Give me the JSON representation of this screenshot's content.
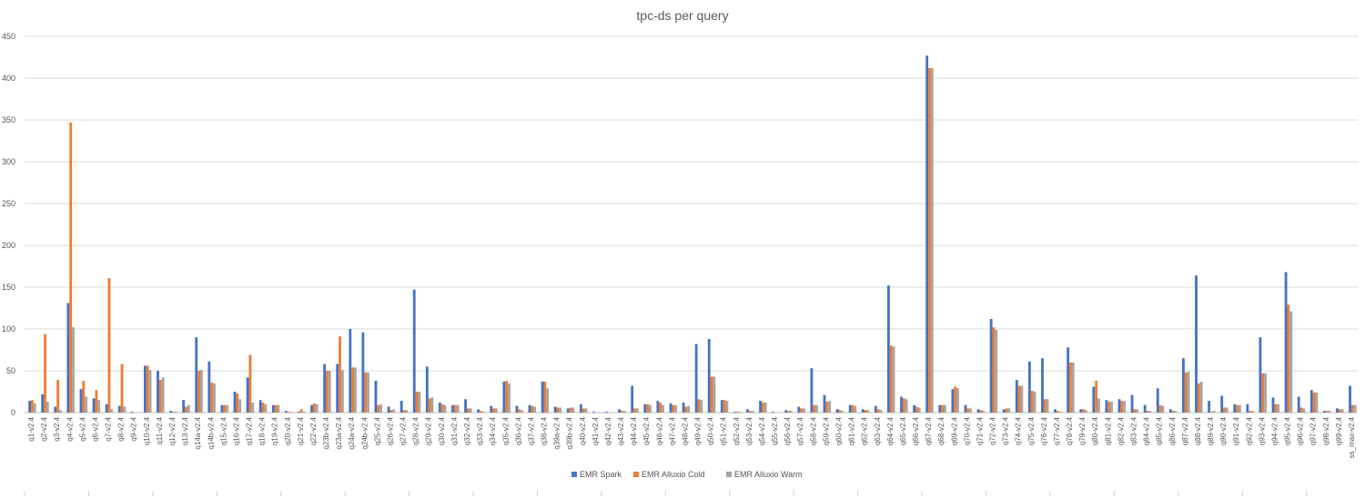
{
  "chart_data": {
    "type": "bar",
    "title": "tpc-ds per query",
    "xlabel": "",
    "ylabel": "",
    "ylim": [
      0,
      450
    ],
    "yticks": [
      0,
      50,
      100,
      150,
      200,
      250,
      300,
      350,
      400,
      450
    ],
    "grid": true,
    "legend_position": "bottom",
    "categories": [
      "q1-v2.4",
      "q2-v2.4",
      "q3-v2.4",
      "q4-v2.4",
      "q5-v2.4",
      "q6-v2.4",
      "q7-v2.4",
      "q8-v2.4",
      "q9-v2.4",
      "q10-v2.4",
      "q11-v2.4",
      "q12-v2.4",
      "q13-v2.4",
      "q14a-v2.4",
      "q14b-v2.4",
      "q15-v2.4",
      "q16-v2.4",
      "q17-v2.4",
      "q18-v2.4",
      "q19-v2.4",
      "q20-v2.4",
      "q21-v2.4",
      "q22-v2.4",
      "q23b-v2.4",
      "q23a-v2.4",
      "q24a-v2.4",
      "q24b-v2.4",
      "q25-v2.4",
      "q26-v2.4",
      "q27-v2.4",
      "q28-v2.4",
      "q29-v2.4",
      "q30-v2.4",
      "q31-v2.4",
      "q32-v2.4",
      "q33-v2.4",
      "q34-v2.4",
      "q35-v2.4",
      "q36-v2.4",
      "q37-v2.4",
      "q38-v2.4",
      "q39a-v2.4",
      "q39b-v2.4",
      "q40-v2.4",
      "q41-v2.4",
      "q42-v2.4",
      "q43-v2.4",
      "q44-v2.4",
      "q45-v2.4",
      "q46-v2.4",
      "q47-v2.4",
      "q48-v2.4",
      "q49-v2.4",
      "q50-v2.4",
      "q51-v2.4",
      "q52-v2.4",
      "q53-v2.4",
      "q54-v2.4",
      "q55-v2.4",
      "q56-v2.4",
      "q57-v2.4",
      "q58-v2.4",
      "q59-v2.4",
      "q60-v2.4",
      "q61-v2.4",
      "q62-v2.4",
      "q63-v2.4",
      "q64-v2.4",
      "q65-v2.4",
      "q66-v2.4",
      "q67-v2.4",
      "q68-v2.4",
      "q69-v2.4",
      "q70-v2.4",
      "q71-v2.4",
      "q72-v2.4",
      "q73-v2.4",
      "q74-v2.4",
      "q75-v2.4",
      "q76-v2.4",
      "q77-v2.4",
      "q78-v2.4",
      "q79-v2.4",
      "q80-v2.4",
      "q81-v2.4",
      "q82-v2.4",
      "q83-v2.4",
      "q84-v2.4",
      "q85-v2.4",
      "q86-v2.4",
      "q87-v2.4",
      "q88-v2.4",
      "q89-v2.4",
      "q90-v2.4",
      "q91-v2.4",
      "q92-v2.4",
      "q93-v2.4",
      "q94-v2.4",
      "q95-v2.4",
      "q96-v2.4",
      "q97-v2.4",
      "q98-v2.4",
      "q99-v2.4",
      "ss_max-v2.4"
    ],
    "series": [
      {
        "name": "EMR Spark",
        "color": "#4472C4",
        "values": [
          14,
          22,
          7,
          131,
          28,
          17,
          10,
          8,
          1,
          56,
          50,
          2,
          15,
          90,
          61,
          9,
          25,
          42,
          15,
          9,
          2,
          1,
          9,
          58,
          58,
          100,
          96,
          38,
          7,
          14,
          147,
          55,
          12,
          9,
          16,
          4,
          8,
          37,
          8,
          9,
          37,
          7,
          5,
          10,
          1,
          1,
          4,
          32,
          10,
          14,
          11,
          12,
          82,
          88,
          15,
          1,
          4,
          14,
          1,
          3,
          7,
          53,
          21,
          4,
          9,
          4,
          8,
          152,
          19,
          9,
          427,
          9,
          28,
          9,
          4,
          112,
          4,
          39,
          61,
          65,
          4,
          78,
          4,
          31,
          15,
          16,
          21,
          9,
          29,
          4,
          65,
          164,
          14,
          20,
          10,
          10,
          90,
          18,
          168,
          19,
          27,
          2,
          5,
          32
        ]
      },
      {
        "name": "EMR Alluxio Cold",
        "color": "#ED7D31",
        "values": [
          15,
          94,
          39,
          347,
          38,
          27,
          161,
          58,
          0,
          56,
          39,
          1,
          7,
          50,
          36,
          9,
          23,
          69,
          12,
          9,
          1,
          4,
          11,
          50,
          91,
          54,
          48,
          9,
          3,
          3,
          25,
          17,
          10,
          9,
          5,
          2,
          5,
          38,
          4,
          8,
          37,
          6,
          6,
          5,
          0,
          0,
          2,
          5,
          10,
          12,
          9,
          7,
          16,
          43,
          15,
          1,
          2,
          12,
          0,
          2,
          5,
          9,
          13,
          3,
          9,
          3,
          4,
          80,
          17,
          7,
          412,
          9,
          31,
          5,
          3,
          102,
          5,
          32,
          26,
          16,
          2,
          60,
          4,
          38,
          13,
          14,
          4,
          2,
          9,
          2,
          48,
          35,
          1,
          6,
          9,
          2,
          47,
          10,
          129,
          6,
          24,
          2,
          4,
          9
        ]
      },
      {
        "name": "EMR Alluxio Warm",
        "color": "#A5A5A5",
        "values": [
          11,
          13,
          3,
          102,
          19,
          15,
          4,
          7,
          0,
          51,
          42,
          1,
          9,
          51,
          35,
          9,
          16,
          12,
          10,
          9,
          1,
          1,
          10,
          50,
          51,
          54,
          48,
          10,
          4,
          3,
          25,
          18,
          9,
          9,
          5,
          1,
          5,
          35,
          3,
          7,
          29,
          6,
          6,
          5,
          0,
          0,
          2,
          5,
          9,
          9,
          9,
          8,
          15,
          43,
          14,
          1,
          2,
          12,
          0,
          2,
          5,
          9,
          14,
          2,
          8,
          3,
          3,
          79,
          16,
          6,
          412,
          9,
          29,
          5,
          2,
          99,
          5,
          32,
          25,
          16,
          1,
          60,
          3,
          17,
          13,
          14,
          4,
          2,
          8,
          2,
          49,
          37,
          2,
          6,
          9,
          2,
          47,
          10,
          121,
          5,
          24,
          2,
          4,
          9
        ]
      }
    ]
  }
}
